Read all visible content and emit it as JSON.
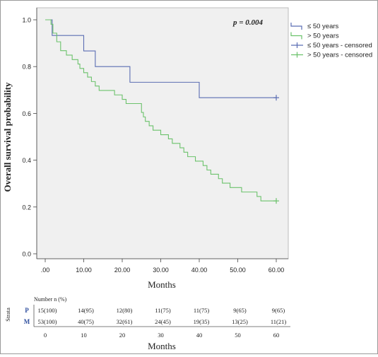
{
  "chart_data": {
    "type": "line",
    "subtype": "kaplan-meier step curves",
    "annotation": "p = 0.004",
    "ylabel": "Overall survival probability",
    "xlabel": "Months",
    "xlim": [
      0,
      60
    ],
    "ylim": [
      0,
      1.0
    ],
    "x_ticks": [
      ".00",
      "10.00",
      "20.00",
      "30.00",
      "40.00",
      "50.00",
      "60.00"
    ],
    "x_tick_values": [
      0,
      10,
      20,
      30,
      40,
      50,
      60
    ],
    "y_ticks": [
      "0.0",
      "0.2",
      "0.4",
      "0.6",
      "0.8",
      "1.0"
    ],
    "y_tick_values": [
      0,
      0.2,
      0.4,
      0.6,
      0.8,
      1.0
    ],
    "grid": false,
    "plot_background": "#f0f0f0",
    "legend_position": "top-right outside plot",
    "series": [
      {
        "name": "≤ 50 years",
        "color": "#5b6db3",
        "steps": [
          [
            0,
            1.0
          ],
          [
            1.8,
            0.933
          ],
          [
            10,
            0.867
          ],
          [
            13,
            0.8
          ],
          [
            22,
            0.733
          ],
          [
            40,
            0.667
          ],
          [
            60,
            0.667
          ]
        ]
      },
      {
        "name": "> 50 years",
        "color": "#6cc26c",
        "steps": [
          [
            0,
            1.0
          ],
          [
            1.5,
            0.981
          ],
          [
            2,
            0.943
          ],
          [
            3,
            0.906
          ],
          [
            4,
            0.868
          ],
          [
            5.5,
            0.849
          ],
          [
            7,
            0.83
          ],
          [
            8.5,
            0.811
          ],
          [
            9,
            0.792
          ],
          [
            10,
            0.774
          ],
          [
            11,
            0.755
          ],
          [
            12,
            0.736
          ],
          [
            13,
            0.717
          ],
          [
            14,
            0.698
          ],
          [
            18,
            0.679
          ],
          [
            20,
            0.66
          ],
          [
            21,
            0.642
          ],
          [
            25,
            0.604
          ],
          [
            25.5,
            0.585
          ],
          [
            26,
            0.566
          ],
          [
            27,
            0.547
          ],
          [
            28,
            0.528
          ],
          [
            30,
            0.509
          ],
          [
            32,
            0.491
          ],
          [
            33,
            0.472
          ],
          [
            35,
            0.453
          ],
          [
            36,
            0.434
          ],
          [
            37,
            0.415
          ],
          [
            39,
            0.396
          ],
          [
            41,
            0.377
          ],
          [
            42,
            0.358
          ],
          [
            43,
            0.34
          ],
          [
            45,
            0.321
          ],
          [
            46,
            0.302
          ],
          [
            48,
            0.283
          ],
          [
            51,
            0.264
          ],
          [
            55,
            0.245
          ],
          [
            56,
            0.226
          ],
          [
            60,
            0.226
          ]
        ]
      },
      {
        "name": "≤ 50 years - censored",
        "color": "#5b6db3",
        "censor_points": [
          [
            60,
            0.667
          ]
        ]
      },
      {
        "name": "> 50 years - censored",
        "color": "#6cc26c",
        "censor_points": [
          [
            60,
            0.226
          ]
        ]
      }
    ]
  },
  "risk_table": {
    "title": "Number n (%)",
    "strata_label": "Strata",
    "rows": [
      {
        "label": "P",
        "values": [
          "15(100)",
          "14(95)",
          "12(80)",
          "11(75)",
          "11(75)",
          "9(65)",
          "9(65)"
        ]
      },
      {
        "label": "M",
        "values": [
          "53(100)",
          "40(75)",
          "32(61)",
          "24(45)",
          "19(35)",
          "13(25)",
          "11(21)"
        ]
      }
    ],
    "x_ticks": [
      "0",
      "10",
      "20",
      "30",
      "40",
      "50",
      "60"
    ],
    "xlabel": "Months"
  }
}
